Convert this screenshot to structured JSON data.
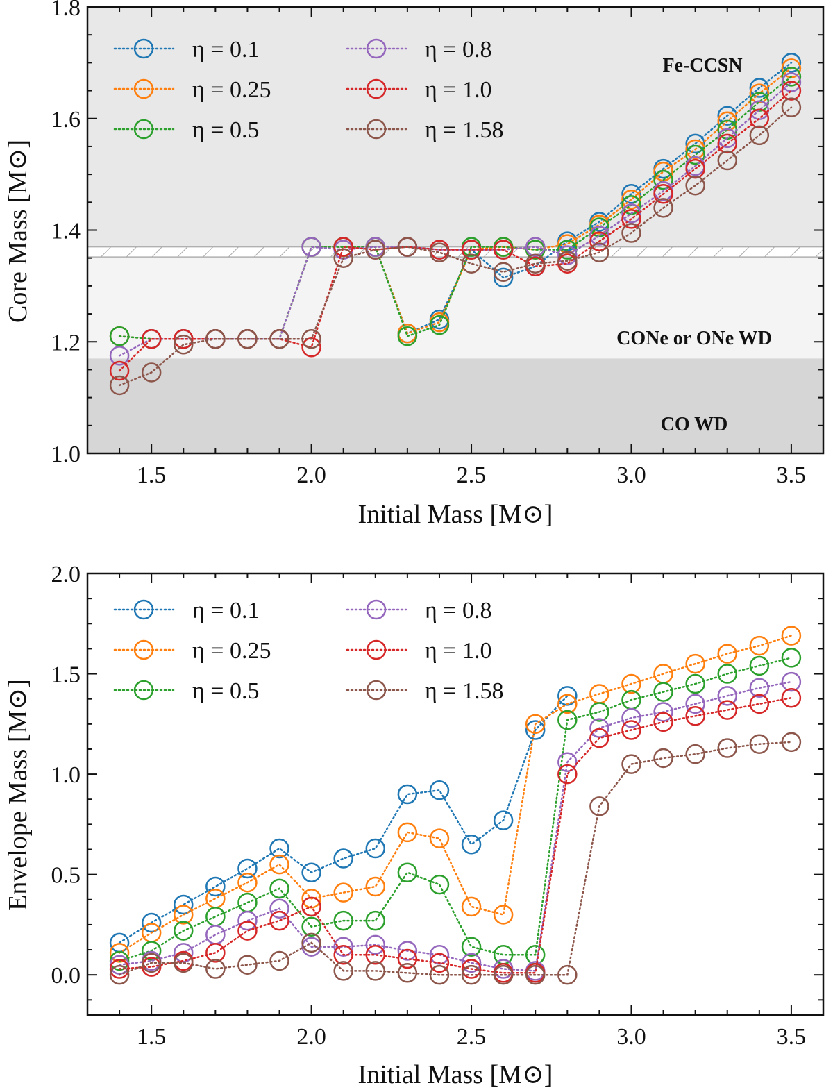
{
  "figure": {
    "type": "two-panel line/marker chart"
  },
  "legend": {
    "eta_symbol": "η",
    "entries": [
      "η = 0.1",
      "η = 0.25",
      "η = 0.5",
      "η = 0.8",
      "η = 1.0",
      "η = 1.58"
    ]
  },
  "series_colors": [
    "#1f77b4",
    "#ff7f0e",
    "#2ca02c",
    "#9467bd",
    "#d62728",
    "#8c564b"
  ],
  "chart_data": [
    {
      "type": "line",
      "panel": "top",
      "title": "",
      "xlabel": "Initial Mass [M⊙]",
      "ylabel": "Core Mass [M⊙]",
      "xlim": [
        1.3,
        3.6
      ],
      "ylim": [
        1.0,
        1.8
      ],
      "xticks": [
        "1.5",
        "2.0",
        "2.5",
        "3.0",
        "3.5"
      ],
      "yticks": [
        "1.0",
        "1.2",
        "1.4",
        "1.6",
        "1.8"
      ],
      "legend_position": "top-left",
      "regions": [
        {
          "label": "Fe-CCSN",
          "y_range": [
            1.37,
            1.8
          ],
          "color": "#e8e8e8"
        },
        {
          "label": "CONe or ONe WD",
          "y_range": [
            1.17,
            1.352
          ],
          "color": "#f4f4f4"
        },
        {
          "label": "CO WD",
          "y_range": [
            1.0,
            1.17
          ],
          "color": "#d6d6d6"
        },
        {
          "label": "",
          "y_range": [
            1.352,
            1.37
          ],
          "color": "#ffffff",
          "hatched": true
        }
      ],
      "x": [
        1.4,
        1.5,
        1.6,
        1.7,
        1.8,
        1.9,
        2.0,
        2.1,
        2.2,
        2.3,
        2.4,
        2.5,
        2.6,
        2.7,
        2.8,
        2.9,
        3.0,
        3.1,
        3.2,
        3.3,
        3.4,
        3.5
      ],
      "series": [
        {
          "name": "η = 0.1",
          "values": [
            1.21,
            1.205,
            1.205,
            1.205,
            1.205,
            1.205,
            1.37,
            1.37,
            1.37,
            1.215,
            1.24,
            1.365,
            1.315,
            1.335,
            1.38,
            1.415,
            1.465,
            1.51,
            1.555,
            1.605,
            1.655,
            1.7
          ]
        },
        {
          "name": "η = 0.25",
          "values": [
            1.21,
            1.205,
            1.205,
            1.205,
            1.205,
            1.205,
            1.37,
            1.37,
            1.37,
            1.215,
            1.235,
            1.365,
            1.37,
            1.365,
            1.375,
            1.41,
            1.455,
            1.505,
            1.545,
            1.595,
            1.645,
            1.69
          ]
        },
        {
          "name": "η = 0.5",
          "values": [
            1.21,
            1.205,
            1.205,
            1.205,
            1.205,
            1.205,
            1.37,
            1.37,
            1.37,
            1.21,
            1.23,
            1.37,
            1.37,
            1.365,
            1.365,
            1.405,
            1.445,
            1.49,
            1.535,
            1.58,
            1.63,
            1.675
          ]
        },
        {
          "name": "η = 0.8",
          "values": [
            1.175,
            1.205,
            1.205,
            1.205,
            1.205,
            1.205,
            1.37,
            1.365,
            1.37,
            1.37,
            1.365,
            1.365,
            1.365,
            1.37,
            1.355,
            1.39,
            1.43,
            1.47,
            1.515,
            1.565,
            1.615,
            1.665
          ]
        },
        {
          "name": "η = 1.0",
          "values": [
            1.148,
            1.205,
            1.205,
            1.205,
            1.205,
            1.205,
            1.19,
            1.37,
            1.365,
            1.37,
            1.365,
            1.365,
            1.365,
            1.335,
            1.34,
            1.38,
            1.42,
            1.465,
            1.51,
            1.555,
            1.6,
            1.65
          ]
        },
        {
          "name": "η = 1.58",
          "values": [
            1.122,
            1.145,
            1.195,
            1.205,
            1.205,
            1.205,
            1.205,
            1.35,
            1.365,
            1.37,
            1.36,
            1.34,
            1.325,
            1.34,
            1.345,
            1.36,
            1.395,
            1.44,
            1.48,
            1.525,
            1.57,
            1.62
          ]
        }
      ]
    },
    {
      "type": "line",
      "panel": "bottom",
      "title": "",
      "xlabel": "Initial Mass [M⊙]",
      "ylabel": "Envelope Mass [M⊙]",
      "xlim": [
        1.3,
        3.6
      ],
      "ylim": [
        -0.2,
        2.0
      ],
      "xticks": [
        "1.5",
        "2.0",
        "2.5",
        "3.0",
        "3.5"
      ],
      "yticks": [
        "0.0",
        "0.5",
        "1.0",
        "1.5",
        "2.0"
      ],
      "legend_position": "top-left",
      "x": [
        1.4,
        1.5,
        1.6,
        1.7,
        1.8,
        1.9,
        2.0,
        2.1,
        2.2,
        2.3,
        2.4,
        2.5,
        2.6,
        2.7,
        2.8,
        2.9,
        3.0,
        3.1,
        3.2,
        3.3,
        3.4,
        3.5
      ],
      "series": [
        {
          "name": "η = 0.1",
          "values": [
            0.16,
            0.26,
            0.35,
            0.44,
            0.53,
            0.63,
            0.51,
            0.58,
            0.63,
            0.9,
            0.92,
            0.65,
            0.77,
            1.22,
            1.39,
            null,
            null,
            null,
            null,
            null,
            null,
            null
          ]
        },
        {
          "name": "η = 0.25",
          "values": [
            0.11,
            0.21,
            0.3,
            0.38,
            0.46,
            0.55,
            0.38,
            0.41,
            0.44,
            0.71,
            0.68,
            0.34,
            0.3,
            1.25,
            1.35,
            1.4,
            1.45,
            1.5,
            1.55,
            1.6,
            1.64,
            1.69
          ]
        },
        {
          "name": "η = 0.5",
          "values": [
            0.07,
            0.12,
            0.22,
            0.29,
            0.36,
            0.43,
            0.24,
            0.27,
            0.27,
            0.51,
            0.45,
            0.14,
            0.1,
            0.1,
            1.27,
            1.31,
            1.37,
            1.41,
            1.45,
            1.5,
            1.54,
            1.58
          ]
        },
        {
          "name": "η = 0.8",
          "values": [
            0.05,
            0.07,
            0.11,
            0.2,
            0.27,
            0.33,
            0.14,
            0.14,
            0.15,
            0.12,
            0.1,
            0.06,
            0.03,
            0.02,
            1.06,
            1.23,
            1.28,
            1.31,
            1.35,
            1.39,
            1.43,
            1.46
          ]
        },
        {
          "name": "η = 1.0",
          "values": [
            0.03,
            0.04,
            0.07,
            0.11,
            0.22,
            0.27,
            0.34,
            0.1,
            0.1,
            0.08,
            0.06,
            0.03,
            0.01,
            0.01,
            1.0,
            1.18,
            1.22,
            1.26,
            1.29,
            1.32,
            1.35,
            1.38
          ]
        },
        {
          "name": "η = 1.58",
          "values": [
            0.0,
            0.06,
            0.06,
            0.03,
            0.05,
            0.07,
            0.16,
            0.02,
            0.02,
            0.01,
            0.0,
            0.0,
            0.0,
            0.0,
            0.0,
            0.84,
            1.05,
            1.08,
            1.1,
            1.13,
            1.15,
            1.16
          ]
        }
      ]
    }
  ]
}
